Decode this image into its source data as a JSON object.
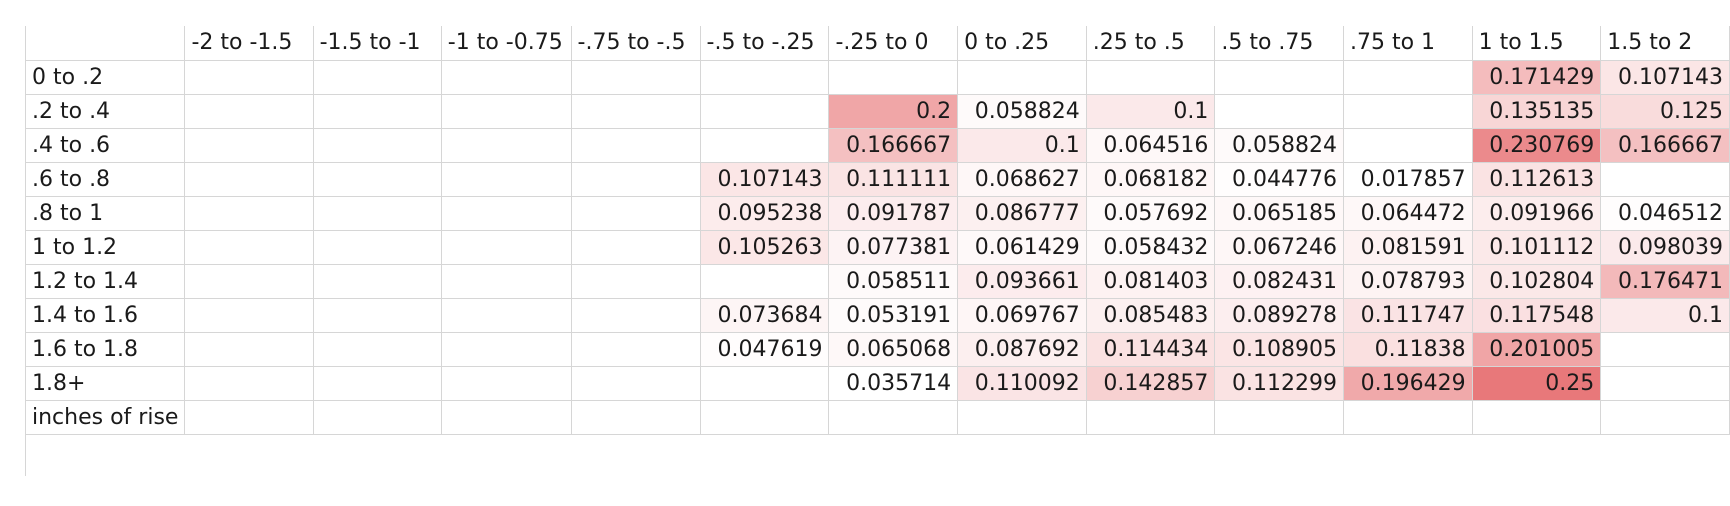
{
  "sheet": {
    "columns": [
      "",
      "-2 to -1.5",
      "-1.5 to -1",
      "-1 to -0.75",
      "-.75 to -.5",
      "-.5 to -.25",
      "-.25 to 0",
      "0 to .25",
      ".25 to .5",
      ".5 to .75",
      ".75 to 1",
      "1 to 1.5",
      "1.5 to 2"
    ],
    "column_widths": [
      130,
      130,
      130,
      130,
      130,
      130,
      130,
      130,
      130,
      130,
      130,
      130,
      130
    ],
    "heat_color_max": "#e8787a",
    "heat_color_min": "#ffffff",
    "rows": [
      {
        "label": "0 to .2",
        "cells": [
          "",
          "",
          "",
          "",
          "",
          "",
          "",
          "",
          "",
          "",
          "0.171429",
          "0.107143"
        ]
      },
      {
        "label": ".2 to .4",
        "cells": [
          "",
          "",
          "",
          "",
          "",
          "0.2",
          "0.058824",
          "0.1",
          "",
          "",
          "0.135135",
          "0.125"
        ]
      },
      {
        "label": ".4 to .6",
        "cells": [
          "",
          "",
          "",
          "",
          "",
          "0.166667",
          "0.1",
          "0.064516",
          "0.058824",
          "",
          "0.230769",
          "0.166667"
        ]
      },
      {
        "label": ".6 to .8",
        "cells": [
          "",
          "",
          "",
          "",
          "0.107143",
          "0.111111",
          "0.068627",
          "0.068182",
          "0.044776",
          "0.017857",
          "0.112613",
          ""
        ]
      },
      {
        "label": ".8 to 1",
        "cells": [
          "",
          "",
          "",
          "",
          "0.095238",
          "0.091787",
          "0.086777",
          "0.057692",
          "0.065185",
          "0.064472",
          "0.091966",
          "0.046512"
        ]
      },
      {
        "label": "1 to 1.2",
        "cells": [
          "",
          "",
          "",
          "",
          "0.105263",
          "0.077381",
          "0.061429",
          "0.058432",
          "0.067246",
          "0.081591",
          "0.101112",
          "0.098039"
        ]
      },
      {
        "label": "1.2 to 1.4",
        "cells": [
          "",
          "",
          "",
          "",
          "",
          "0.058511",
          "0.093661",
          "0.081403",
          "0.082431",
          "0.078793",
          "0.102804",
          "0.176471"
        ]
      },
      {
        "label": "1.4 to 1.6",
        "cells": [
          "",
          "",
          "",
          "",
          "0.073684",
          "0.053191",
          "0.069767",
          "0.085483",
          "0.089278",
          "0.111747",
          "0.117548",
          "0.1"
        ]
      },
      {
        "label": "1.6 to 1.8",
        "cells": [
          "",
          "",
          "",
          "",
          "0.047619",
          "0.065068",
          "0.087692",
          "0.114434",
          "0.108905",
          "0.11838",
          "0.201005",
          ""
        ]
      },
      {
        "label": "1.8+",
        "cells": [
          "",
          "",
          "",
          "",
          "",
          "0.035714",
          "0.110092",
          "0.142857",
          "0.112299",
          "0.196429",
          "0.25",
          ""
        ]
      },
      {
        "label": "inches of rise",
        "cells": [
          "",
          "",
          "",
          "",
          "",
          "",
          "",
          "",
          "",
          "",
          "",
          ""
        ]
      }
    ]
  }
}
